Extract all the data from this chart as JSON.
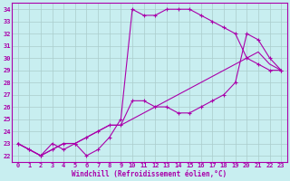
{
  "bg_color": "#c8eef0",
  "line_color": "#aa00aa",
  "grid_color": "#aacccc",
  "xlabel": "Windchill (Refroidissement éolien,°C)",
  "xlim": [
    -0.5,
    23.5
  ],
  "ylim": [
    21.5,
    34.5
  ],
  "yticks": [
    22,
    23,
    24,
    25,
    26,
    27,
    28,
    29,
    30,
    31,
    32,
    33,
    34
  ],
  "xticks": [
    0,
    1,
    2,
    3,
    4,
    5,
    6,
    7,
    8,
    9,
    10,
    11,
    12,
    13,
    14,
    15,
    16,
    17,
    18,
    19,
    20,
    21,
    22,
    23
  ],
  "line1_x": [
    0,
    1,
    2,
    3,
    4,
    5,
    6,
    7,
    8,
    9,
    10,
    11,
    12,
    13,
    14,
    15,
    16,
    17,
    18,
    19,
    20,
    21,
    22,
    23
  ],
  "line1_y": [
    23.0,
    22.5,
    22.0,
    23.0,
    22.5,
    23.0,
    22.0,
    22.5,
    23.5,
    25.0,
    34.0,
    33.5,
    33.5,
    34.0,
    34.0,
    34.0,
    33.5,
    33.0,
    32.5,
    32.0,
    30.0,
    29.5,
    29.0,
    29.0
  ],
  "line2_x": [
    0,
    1,
    2,
    3,
    4,
    5,
    6,
    7,
    8,
    9,
    10,
    11,
    12,
    13,
    14,
    15,
    16,
    17,
    18,
    19,
    20,
    21,
    22,
    23
  ],
  "line2_y": [
    23.0,
    22.5,
    22.0,
    22.5,
    23.0,
    23.0,
    23.5,
    24.0,
    24.5,
    24.5,
    26.5,
    26.5,
    26.0,
    26.0,
    25.5,
    25.5,
    26.0,
    26.5,
    27.0,
    28.0,
    32.0,
    31.5,
    30.0,
    29.0
  ],
  "line3_x": [
    0,
    1,
    2,
    3,
    4,
    5,
    6,
    7,
    8,
    9,
    10,
    11,
    12,
    13,
    14,
    15,
    16,
    17,
    18,
    19,
    20,
    21,
    22,
    23
  ],
  "line3_y": [
    23.0,
    22.5,
    22.0,
    22.5,
    23.0,
    23.0,
    23.5,
    24.0,
    24.5,
    24.5,
    25.0,
    25.5,
    26.0,
    26.5,
    27.0,
    27.5,
    28.0,
    28.5,
    29.0,
    29.5,
    30.0,
    30.5,
    29.5,
    29.0
  ]
}
